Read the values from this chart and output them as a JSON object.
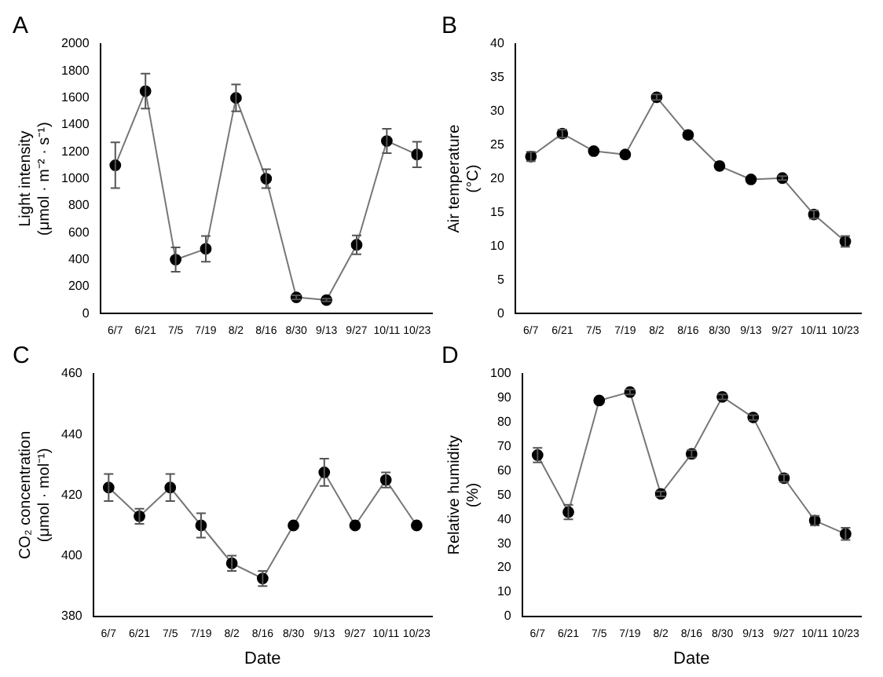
{
  "chart_data": [
    {
      "type": "line",
      "title": "A",
      "ylabel": "Light intensity (μmol · m⁻² · s⁻¹)",
      "categories": [
        "6/7",
        "6/21",
        "7/5",
        "7/19",
        "8/2",
        "8/16",
        "8/30",
        "9/13",
        "9/27",
        "10/11",
        "10/23"
      ],
      "series": [
        {
          "color": "#000000",
          "values": [
            1100,
            1650,
            400,
            480,
            1600,
            1000,
            120,
            100,
            510,
            1280,
            1180
          ],
          "errors": [
            170,
            130,
            90,
            95,
            100,
            70,
            15,
            10,
            70,
            90,
            95
          ]
        }
      ],
      "ylim": [
        0,
        2000
      ],
      "yticks": [
        0,
        200,
        400,
        600,
        800,
        1000,
        1200,
        1400,
        1600,
        1800,
        2000
      ],
      "grid": false,
      "legend": false,
      "marker": "circle",
      "line_style": "solid"
    },
    {
      "type": "line",
      "title": "B",
      "ylabel": "Air temperature (°C)",
      "categories": [
        "6/7",
        "6/21",
        "7/5",
        "7/19",
        "8/2",
        "8/16",
        "8/30",
        "9/13",
        "9/27",
        "10/11",
        "10/23"
      ],
      "series": [
        {
          "color": "#000000",
          "values": [
            23.3,
            26.7,
            24.1,
            23.6,
            32.1,
            26.5,
            21.9,
            19.9,
            20.1,
            14.7,
            10.7
          ],
          "errors": [
            0.7,
            0.6,
            null,
            null,
            0.4,
            null,
            null,
            null,
            0.3,
            0.6,
            0.8
          ]
        }
      ],
      "ylim": [
        0,
        40
      ],
      "yticks": [
        0,
        5,
        10,
        15,
        20,
        25,
        30,
        35,
        40
      ],
      "grid": false,
      "legend": false,
      "marker": "circle",
      "line_style": "solid"
    },
    {
      "type": "line",
      "title": "C",
      "xlabel": "Date",
      "ylabel": "CO₂ concentration (μmol · mol⁻¹)",
      "categories": [
        "6/7",
        "6/21",
        "7/5",
        "7/19",
        "8/2",
        "8/16",
        "8/30",
        "9/13",
        "9/27",
        "10/11",
        "10/23"
      ],
      "series": [
        {
          "color": "#000000",
          "values": [
            422.5,
            413,
            422.5,
            410,
            397.5,
            392.5,
            410,
            427.5,
            410,
            425,
            410
          ],
          "errors": [
            4.5,
            2.5,
            4.5,
            4,
            2.5,
            2.5,
            null,
            4.5,
            null,
            2.5,
            null
          ]
        }
      ],
      "ylim": [
        380,
        460
      ],
      "yticks": [
        380,
        400,
        420,
        440,
        460
      ],
      "grid": false,
      "legend": false,
      "marker": "circle",
      "line_style": "solid"
    },
    {
      "type": "line",
      "title": "D",
      "xlabel": "Date",
      "ylabel": "Relative humidity (%)",
      "categories": [
        "6/7",
        "6/21",
        "7/5",
        "7/19",
        "8/2",
        "8/16",
        "8/30",
        "9/13",
        "9/27",
        "10/11",
        "10/23"
      ],
      "series": [
        {
          "color": "#000000",
          "values": [
            66.5,
            43,
            89,
            92.5,
            50.5,
            67,
            90.5,
            82,
            57,
            39.5,
            34
          ],
          "errors": [
            3,
            3,
            null,
            1,
            1,
            1.5,
            1,
            1,
            1.5,
            2,
            2.5
          ]
        }
      ],
      "ylim": [
        0,
        100
      ],
      "yticks": [
        0,
        10,
        20,
        30,
        40,
        50,
        60,
        70,
        80,
        90,
        100
      ],
      "grid": false,
      "legend": false,
      "marker": "circle",
      "line_style": "solid"
    }
  ]
}
